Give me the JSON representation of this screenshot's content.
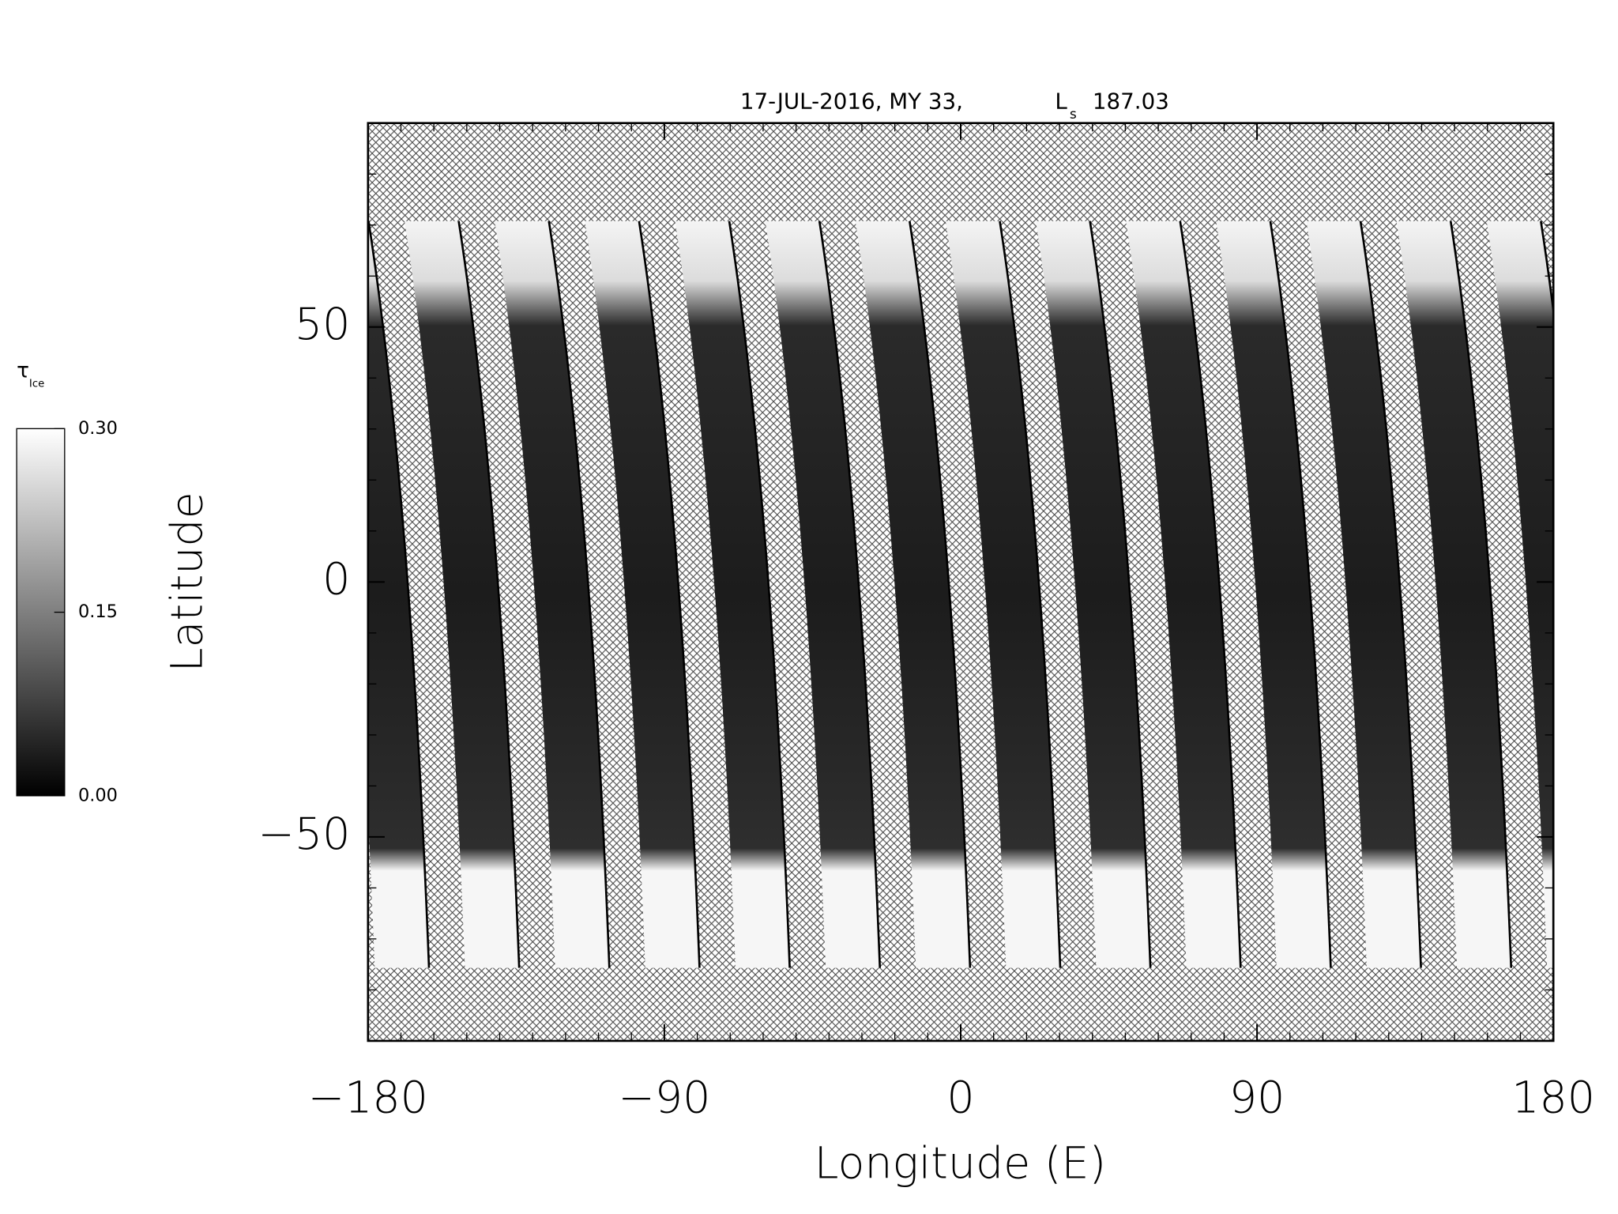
{
  "chart_data": {
    "type": "map",
    "title": {
      "prefix": "17-JUL-2016, MY 33,",
      "ls_symbol": "L",
      "ls_subscript": "s",
      "ls_value": "187.03"
    },
    "x_label": "Longitude (E)",
    "y_label": "Latitude",
    "xlim": [
      -180,
      180
    ],
    "ylim": [
      -90,
      90
    ],
    "xticks": [
      {
        "value": -180,
        "label": "−180"
      },
      {
        "value": -90,
        "label": "−90"
      },
      0,
      90,
      180
    ],
    "yticks": [
      {
        "value": -50,
        "label": "−50"
      },
      0,
      50
    ],
    "xminorticks": [
      -170,
      -160,
      -150,
      -140,
      -130,
      -120,
      -110,
      -100,
      -80,
      -70,
      -60,
      -50,
      -40,
      -30,
      -20,
      -10,
      10,
      20,
      30,
      40,
      50,
      60,
      70,
      80,
      100,
      110,
      120,
      130,
      140,
      150,
      160,
      170
    ],
    "yminorticks": [
      -80,
      -70,
      -60,
      -40,
      -30,
      -20,
      -10,
      10,
      20,
      30,
      40,
      60,
      70,
      80
    ],
    "colorbar": {
      "label": "τ",
      "label_subscript": "Ice",
      "lim": [
        0,
        0.3
      ],
      "ticks": [
        {
          "value": 0,
          "label": "0.00"
        },
        {
          "value": 0.15,
          "label": "0.15"
        },
        {
          "value": 0.3,
          "label": "0.30"
        }
      ],
      "colors": [
        "#000000",
        "#ffffff"
      ]
    }
  }
}
